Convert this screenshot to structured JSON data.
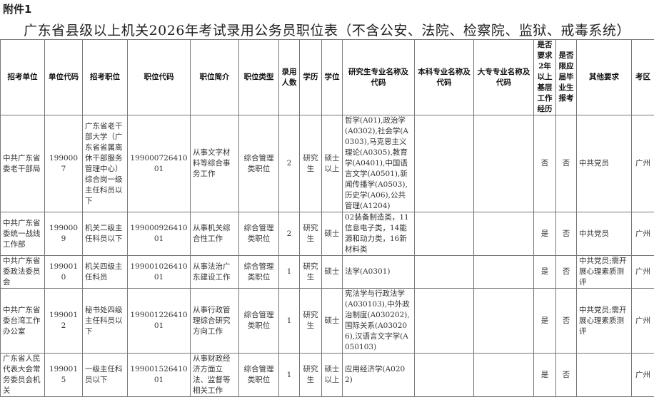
{
  "attachment_label": "附件1",
  "title": "广东省县级以上机关2026年考试录用公务员职位表（不含公安、法院、检察院、监狱、戒毒系统）",
  "columns": [
    "招考单位",
    "单位代码",
    "招考职位",
    "职位代码",
    "职位简介",
    "职位类型",
    "录用人数",
    "学历",
    "学位",
    "研究生专业名称及代码",
    "本科专业名称及代码",
    "大专专业名称及代码",
    "是否要求2年以上基层工作经历",
    "是否限应届毕业生报考",
    "其他要求",
    "考区"
  ],
  "rows": [
    [
      "中共广东省委老干部局",
      "1990007",
      "广东省老干部大学（广东省省属离休干部服务管理中心）综合岗一级主任科员以下",
      "19900072641001",
      "从事文字材料等综合事务工作",
      "综合管理类职位",
      "2",
      "研究生",
      "硕士以上",
      "哲学(A01),政治学(A0302),社会学(A0303),马克思主义理论(A0305),教育学(A0401),中国语言文学(A0501),新闻传播学(A0503),历史学(A06),公共管理(A1204)",
      "",
      "",
      "否",
      "否",
      "中共党员",
      "广州"
    ],
    [
      "中共广东省委统一战线工作部",
      "1990009",
      "机关二级主任科员以下",
      "19900092641001",
      "从事机关综合性工作",
      "综合管理类职位",
      "2",
      "研究生",
      "硕士",
      "02装备制造类，11信息电子类，14能源和动力类，16新材料类",
      "",
      "",
      "是",
      "否",
      "中共党员",
      "广州"
    ],
    [
      "中共广东省委政法委员会",
      "1990010",
      "机关四级主任科员",
      "19900102641001",
      "从事法治广东建设工作",
      "综合管理类职位",
      "1",
      "研究生",
      "硕士",
      "法学(A0301)",
      "",
      "",
      "是",
      "否",
      "中共党员;需开展心理素质测评",
      "广州"
    ],
    [
      "中共广东省委台湾工作办公室",
      "1990012",
      "秘书处四级主任科员以下",
      "19900122641001",
      "从事行政管理综合研究方向工作",
      "综合管理类职位",
      "1",
      "研究生",
      "硕士",
      "宪法学与行政法学(A030103),中外政治制度(A030202),国际关系(A030206),汉语言文字学(A050103)",
      "",
      "",
      "是",
      "否",
      "中共党员;需开展心理素质测评",
      "广州"
    ],
    [
      "广东省人民代表大会常务委员会机关",
      "1990015",
      "一级主任科员以下",
      "19900152641001",
      "从事财政经济方面立法、监督等相关工作",
      "综合管理类职位",
      "1",
      "研究生",
      "硕士以上",
      "应用经济学(A0202)",
      "",
      "",
      "是",
      "否",
      "",
      "广州"
    ]
  ]
}
